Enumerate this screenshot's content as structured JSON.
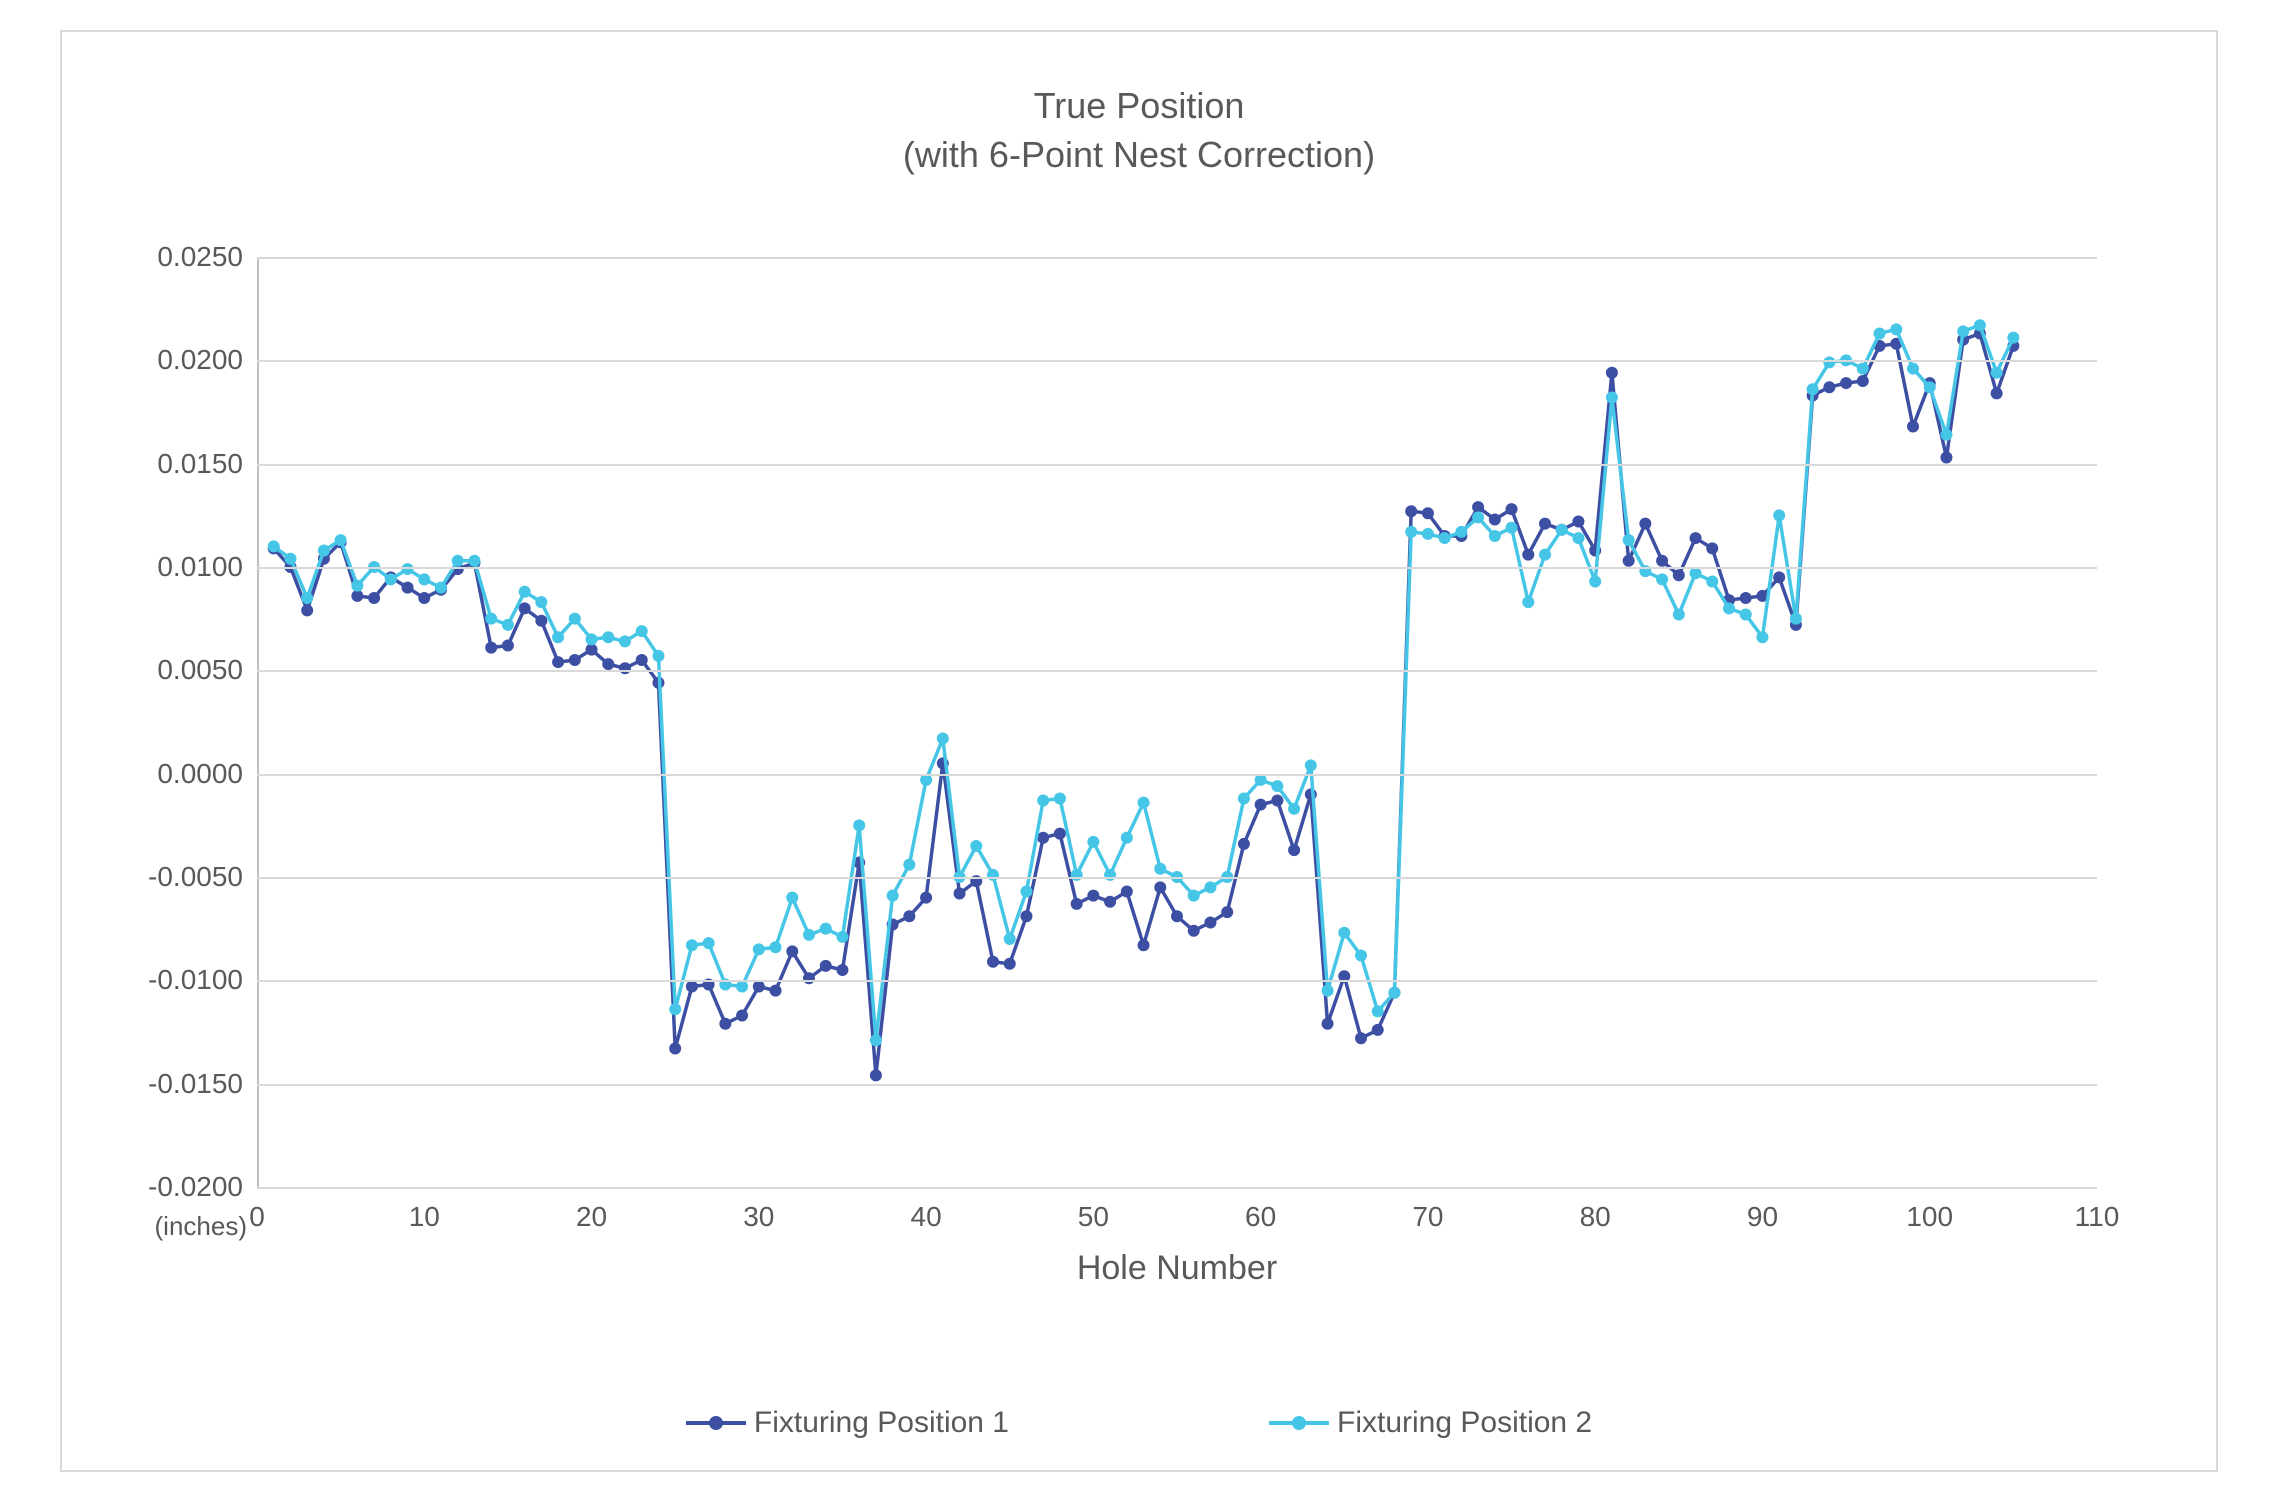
{
  "chart": {
    "type": "line",
    "title_line1": "True Position",
    "title_line2": "(with 6-Point Nest Correction)",
    "title_fontsize": 36,
    "x_axis_title": "Hole Number",
    "x_axis_title_fontsize": 34,
    "y_unit_label": "(inches)",
    "background_color": "#ffffff",
    "frame_border_color": "#d9d9d9",
    "grid_color": "#d9d9d9",
    "axis_line_color": "#bfbfbf",
    "tick_label_color": "#595959",
    "tick_label_fontsize": 28,
    "xlim": [
      0,
      110
    ],
    "ylim": [
      -0.02,
      0.025
    ],
    "x_ticks": [
      0,
      10,
      20,
      30,
      40,
      50,
      60,
      70,
      80,
      90,
      100,
      110
    ],
    "y_ticks": [
      -0.02,
      -0.015,
      -0.01,
      -0.005,
      0.0,
      0.005,
      0.01,
      0.015,
      0.02,
      0.025
    ],
    "y_tick_labels": [
      "-0.0200",
      "-0.0150",
      "-0.0100",
      "-0.0050",
      "0.0000",
      "0.0050",
      "0.0100",
      "0.0150",
      "0.0200",
      "0.0250"
    ],
    "marker_radius": 6,
    "line_width": 3.5,
    "series": [
      {
        "name": "Fixturing Position 1",
        "color": "#3d4fa3",
        "x": [
          1,
          2,
          3,
          4,
          5,
          6,
          7,
          8,
          9,
          10,
          11,
          12,
          13,
          14,
          15,
          16,
          17,
          18,
          19,
          20,
          21,
          22,
          23,
          24,
          25,
          26,
          27,
          28,
          29,
          30,
          31,
          32,
          33,
          34,
          35,
          36,
          37,
          38,
          39,
          40,
          41,
          42,
          43,
          44,
          45,
          46,
          47,
          48,
          49,
          50,
          51,
          52,
          53,
          54,
          55,
          56,
          57,
          58,
          59,
          60,
          61,
          62,
          63,
          64,
          65,
          66,
          67,
          68,
          69,
          70,
          71,
          72,
          73,
          74,
          75,
          76,
          77,
          78,
          79,
          80,
          81,
          82,
          83,
          84,
          85,
          86,
          87,
          88,
          89,
          90,
          91,
          92,
          93,
          94,
          95,
          96,
          97,
          98,
          99,
          100,
          101,
          102,
          103,
          104,
          105
        ],
        "y": [
          0.0109,
          0.01,
          0.0079,
          0.0104,
          0.0112,
          0.0086,
          0.0085,
          0.0095,
          0.009,
          0.0085,
          0.0089,
          0.0099,
          0.0102,
          0.0061,
          0.0062,
          0.008,
          0.0074,
          0.0054,
          0.0055,
          0.006,
          0.0053,
          0.0051,
          0.0055,
          0.0044,
          -0.0133,
          -0.0103,
          -0.0102,
          -0.0121,
          -0.0117,
          -0.0103,
          -0.0105,
          -0.0086,
          -0.0099,
          -0.0093,
          -0.0095,
          -0.0043,
          -0.0146,
          -0.0073,
          -0.0069,
          -0.006,
          0.0005,
          -0.0058,
          -0.0052,
          -0.0091,
          -0.0092,
          -0.0069,
          -0.0031,
          -0.0029,
          -0.0063,
          -0.0059,
          -0.0062,
          -0.0057,
          -0.0083,
          -0.0055,
          -0.0069,
          -0.0076,
          -0.0072,
          -0.0067,
          -0.0034,
          -0.0015,
          -0.0013,
          -0.0037,
          -0.001,
          -0.0121,
          -0.0098,
          -0.0128,
          -0.0124,
          -0.0106,
          0.0127,
          0.0126,
          0.0115,
          0.0115,
          0.0129,
          0.0123,
          0.0128,
          0.0106,
          0.0121,
          0.0118,
          0.0122,
          0.0108,
          0.0194,
          0.0103,
          0.0121,
          0.0103,
          0.0096,
          0.0114,
          0.0109,
          0.0084,
          0.0085,
          0.0086,
          0.0095,
          0.0072,
          0.0183,
          0.0187,
          0.0189,
          0.019,
          0.0207,
          0.0208,
          0.0168,
          0.0189,
          0.0153,
          0.021,
          0.0213,
          0.0184,
          0.0207
        ],
        "marker_style": "circle"
      },
      {
        "name": "Fixturing Position 2",
        "color": "#45c6e6",
        "x": [
          1,
          2,
          3,
          4,
          5,
          6,
          7,
          8,
          9,
          10,
          11,
          12,
          13,
          14,
          15,
          16,
          17,
          18,
          19,
          20,
          21,
          22,
          23,
          24,
          25,
          26,
          27,
          28,
          29,
          30,
          31,
          32,
          33,
          34,
          35,
          36,
          37,
          38,
          39,
          40,
          41,
          42,
          43,
          44,
          45,
          46,
          47,
          48,
          49,
          50,
          51,
          52,
          53,
          54,
          55,
          56,
          57,
          58,
          59,
          60,
          61,
          62,
          63,
          64,
          65,
          66,
          67,
          68,
          69,
          70,
          71,
          72,
          73,
          74,
          75,
          76,
          77,
          78,
          79,
          80,
          81,
          82,
          83,
          84,
          85,
          86,
          87,
          88,
          89,
          90,
          91,
          92,
          93,
          94,
          95,
          96,
          97,
          98,
          99,
          100,
          101,
          102,
          103,
          104,
          105
        ],
        "y": [
          0.011,
          0.0104,
          0.0085,
          0.0108,
          0.0113,
          0.0091,
          0.01,
          0.0094,
          0.0099,
          0.0094,
          0.009,
          0.0103,
          0.0103,
          0.0075,
          0.0072,
          0.0088,
          0.0083,
          0.0066,
          0.0075,
          0.0065,
          0.0066,
          0.0064,
          0.0069,
          0.0057,
          -0.0114,
          -0.0083,
          -0.0082,
          -0.0102,
          -0.0103,
          -0.0085,
          -0.0084,
          -0.006,
          -0.0078,
          -0.0075,
          -0.0079,
          -0.0025,
          -0.0129,
          -0.0059,
          -0.0044,
          -0.0003,
          0.0017,
          -0.005,
          -0.0035,
          -0.0049,
          -0.008,
          -0.0057,
          -0.0013,
          -0.0012,
          -0.0049,
          -0.0033,
          -0.0049,
          -0.0031,
          -0.0014,
          -0.0046,
          -0.005,
          -0.0059,
          -0.0055,
          -0.005,
          -0.0012,
          -0.0003,
          -0.0006,
          -0.0017,
          0.0004,
          -0.0105,
          -0.0077,
          -0.0088,
          -0.0115,
          -0.0106,
          0.0117,
          0.0116,
          0.0114,
          0.0117,
          0.0124,
          0.0115,
          0.0119,
          0.0083,
          0.0106,
          0.0118,
          0.0114,
          0.0093,
          0.0182,
          0.0113,
          0.0098,
          0.0094,
          0.0077,
          0.0097,
          0.0093,
          0.008,
          0.0077,
          0.0066,
          0.0125,
          0.0075,
          0.0186,
          0.0199,
          0.02,
          0.0196,
          0.0213,
          0.0215,
          0.0196,
          0.0187,
          0.0164,
          0.0214,
          0.0217,
          0.0194,
          0.0211
        ],
        "marker_style": "circle"
      }
    ],
    "legend": {
      "position": "bottom",
      "fontsize": 30,
      "text_color": "#595959"
    }
  }
}
